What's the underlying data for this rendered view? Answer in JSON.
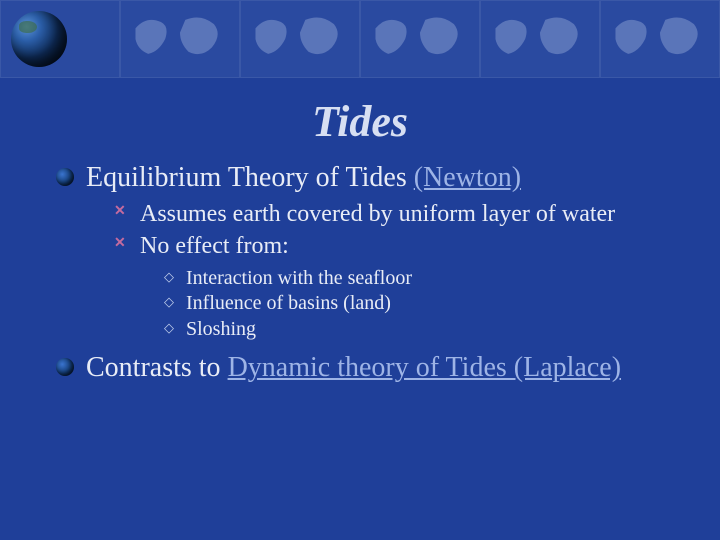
{
  "colors": {
    "slide_bg": "#1f3f99",
    "banner_bg": "#2a4aa0",
    "map_fill": "#95a9d8",
    "title_color": "#d7dff2",
    "body_text": "#e8ecf6",
    "link_text": "#9eb4e6",
    "lvl3_marker": "#bfcdeb"
  },
  "fonts": {
    "title_size": 44,
    "lvl1_size": 28,
    "lvl2_size": 24,
    "lvl3_size": 20
  },
  "title": "Tides",
  "bullets": {
    "b1": {
      "prefix": "Equilibrium Theory of Tides ",
      "link": "(Newton)",
      "sub": {
        "s1": "Assumes earth covered by uniform layer of water",
        "s2": "No effect from:",
        "sub3": {
          "t1": "Interaction with the seafloor",
          "t2": "Influence of basins (land)",
          "t3": "Sloshing"
        }
      }
    },
    "b2": {
      "prefix": "Contrasts to ",
      "link": "Dynamic theory of Tides (Laplace)"
    }
  }
}
